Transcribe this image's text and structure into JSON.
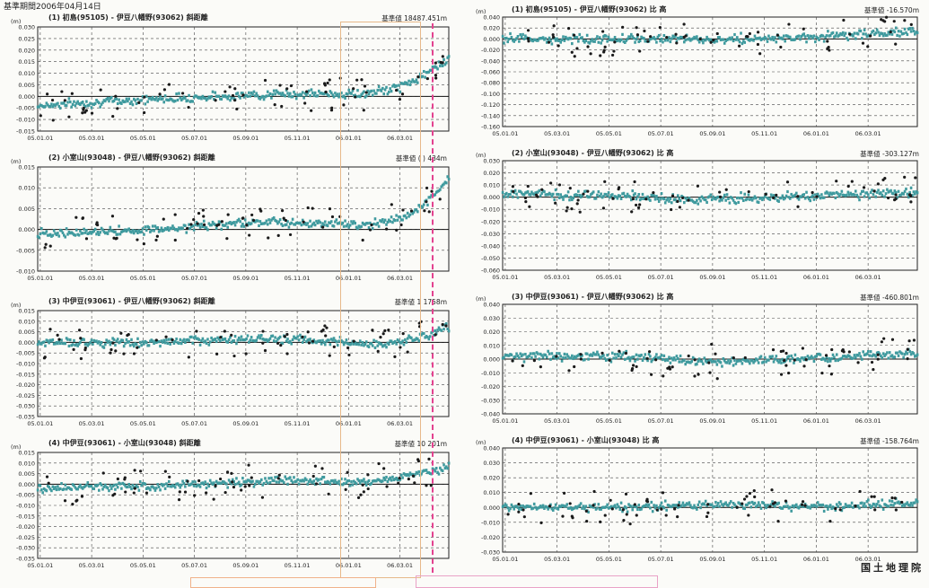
{
  "header": {
    "text": "基準期間2006年04月14日"
  },
  "footer": {
    "org": "国土地理院"
  },
  "colors": {
    "trend": "#3f9a9e",
    "dots": "#1a1a1a",
    "grid": "#333333",
    "highlight_orange": "#e7b98a",
    "highlight_pink": "#e3428f"
  },
  "panels": [
    {
      "title": "(1) 初島(95105) - 伊豆八幡野(93062) 斜距離",
      "base": "基準値 18487.451m"
    },
    {
      "title": "(2) 小室山(93048) - 伊豆八幡野(93062) 斜距離",
      "base": "基準値 ( ) 434m"
    },
    {
      "title": "(3) 中伊豆(93061) - 伊豆八幡野(93062) 斜距離",
      "base": "基準値 1 1758m"
    },
    {
      "title": "(4) 中伊豆(93061) - 小室山(93048) 斜距離",
      "base": "基準値 10 201m"
    },
    {
      "title": "(1) 初島(95105) - 伊豆八幡野(93062) 比 高",
      "base": "基準値 -16.570m"
    },
    {
      "title": "(2) 小室山(93048) - 伊豆八幡野(93062) 比 高",
      "base": "基準値 -303.127m"
    },
    {
      "title": "(3) 中伊豆(93061) - 伊豆八幡野(93062) 比 高",
      "base": "基準値 -460.801m"
    },
    {
      "title": "(4) 中伊豆(93061) - 小室山(93048) 比 高",
      "base": "基準値 -158.764m"
    }
  ],
  "chart_data": [
    {
      "type": "scatter",
      "ylabel": "(m)",
      "ylim": [
        -0.015,
        0.03
      ],
      "yticks": [
        "0.030",
        "0.025",
        "0.020",
        "0.015",
        "0.010",
        "0.005",
        "0.000",
        "-0.005",
        "-0.010",
        "-0.015"
      ],
      "xticks": [
        "05.01.01",
        "05.03.01",
        "05.05.01",
        "05.07.01",
        "05.09.01",
        "05.11.01",
        "06.01.01",
        "06.03.01"
      ],
      "trend": [
        [
          0,
          -0.004
        ],
        [
          0.3,
          -0.001
        ],
        [
          0.6,
          0.001
        ],
        [
          0.8,
          0.001
        ],
        [
          0.88,
          0.004
        ],
        [
          0.94,
          0.009
        ],
        [
          1,
          0.017
        ]
      ]
    },
    {
      "type": "scatter",
      "ylabel": "(m)",
      "ylim": [
        -0.01,
        0.015
      ],
      "yticks": [
        "0.015",
        "0.010",
        "0.005",
        "0.000",
        "-0.005",
        "-0.010"
      ],
      "xticks": [
        "05.01.01",
        "05.03.01",
        "05.05.01",
        "05.07.01",
        "05.09.01",
        "05.11.01",
        "06.01.01",
        "06.03.01"
      ],
      "trend": [
        [
          0,
          -0.001
        ],
        [
          0.3,
          0.0
        ],
        [
          0.55,
          0.002
        ],
        [
          0.8,
          0.001
        ],
        [
          0.9,
          0.003
        ],
        [
          0.95,
          0.007
        ],
        [
          1,
          0.012
        ]
      ]
    },
    {
      "type": "scatter",
      "ylabel": "(m)",
      "ylim": [
        -0.035,
        0.015
      ],
      "yticks": [
        "0.015",
        "0.010",
        "0.005",
        "0.000",
        "-0.005",
        "-0.010",
        "-0.015",
        "-0.020",
        "-0.025",
        "-0.030",
        "-0.035"
      ],
      "xticks": [
        "05.01.01",
        "05.03.01",
        "05.05.01",
        "05.07.01",
        "05.09.01",
        "05.11.01",
        "06.01.01",
        "06.03.01"
      ],
      "trend": [
        [
          0,
          0.0
        ],
        [
          0.3,
          0.0
        ],
        [
          0.55,
          0.002
        ],
        [
          0.75,
          0.0
        ],
        [
          0.85,
          -0.001
        ],
        [
          0.95,
          0.003
        ],
        [
          1,
          0.008
        ]
      ]
    },
    {
      "type": "scatter",
      "ylabel": "(m)",
      "ylim": [
        -0.035,
        0.015
      ],
      "yticks": [
        "0.015",
        "0.010",
        "0.005",
        "0.000",
        "-0.005",
        "-0.010",
        "-0.015",
        "-0.020",
        "-0.025",
        "-0.030",
        "-0.035"
      ],
      "xticks": [
        "05.01.01",
        "05.03.01",
        "05.05.01",
        "05.07.01",
        "05.09.01",
        "05.11.01",
        "06.01.01",
        "06.03.01"
      ],
      "trend": [
        [
          0,
          -0.002
        ],
        [
          0.4,
          0.0
        ],
        [
          0.6,
          0.002
        ],
        [
          0.8,
          0.001
        ],
        [
          0.9,
          0.004
        ],
        [
          1,
          0.008
        ]
      ]
    },
    {
      "type": "scatter",
      "ylabel": "(m)",
      "ylim": [
        -0.16,
        0.04
      ],
      "yticks": [
        "0.040",
        "0.020",
        "0.000",
        "-0.020",
        "-0.040",
        "-0.060",
        "-0.080",
        "-0.100",
        "-0.120",
        "-0.140",
        "-0.160"
      ],
      "xticks": [
        "05.01.01",
        "05.03.01",
        "05.05.01",
        "05.07.01",
        "05.09.01",
        "05.11.01",
        "06.01.01",
        "06.03.01"
      ],
      "trend": [
        [
          0,
          0.0
        ],
        [
          0.3,
          0.0
        ],
        [
          0.6,
          0.0
        ],
        [
          0.8,
          0.005
        ],
        [
          1,
          0.015
        ]
      ]
    },
    {
      "type": "scatter",
      "ylabel": "(m)",
      "ylim": [
        -0.06,
        0.03
      ],
      "yticks": [
        "0.030",
        "0.020",
        "0.010",
        "0.000",
        "-0.010",
        "-0.020",
        "-0.030",
        "-0.040",
        "-0.050",
        "-0.060"
      ],
      "xticks": [
        "05.01.01",
        "05.03.01",
        "05.05.01",
        "05.07.01",
        "05.09.01",
        "05.11.01",
        "06.01.01",
        "06.03.01"
      ],
      "trend": [
        [
          0,
          0.003
        ],
        [
          0.3,
          0.001
        ],
        [
          0.45,
          -0.002
        ],
        [
          0.7,
          0.0
        ],
        [
          1,
          0.004
        ]
      ]
    },
    {
      "type": "scatter",
      "ylabel": "(m)",
      "ylim": [
        -0.04,
        0.04
      ],
      "yticks": [
        "0.040",
        "0.030",
        "0.020",
        "0.010",
        "0.000",
        "-0.010",
        "-0.020",
        "-0.030",
        "-0.040"
      ],
      "xticks": [
        "05.01.01",
        "05.03.01",
        "05.05.01",
        "05.07.01",
        "05.09.01",
        "05.11.01",
        "06.01.01",
        "06.03.01"
      ],
      "trend": [
        [
          0,
          0.002
        ],
        [
          0.3,
          0.002
        ],
        [
          0.5,
          -0.002
        ],
        [
          0.7,
          0.0
        ],
        [
          1,
          0.004
        ]
      ]
    },
    {
      "type": "scatter",
      "ylabel": "(m)",
      "ylim": [
        -0.03,
        0.04
      ],
      "yticks": [
        "0.040",
        "0.030",
        "0.020",
        "0.010",
        "0.000",
        "-0.010",
        "-0.020",
        "-0.030"
      ],
      "xticks": [
        "05.01.01",
        "05.03.01",
        "05.05.01",
        "05.07.01",
        "05.09.01",
        "05.11.01",
        "06.01.01",
        "06.03.01"
      ],
      "trend": [
        [
          0,
          0.0
        ],
        [
          0.3,
          0.0
        ],
        [
          0.5,
          0.002
        ],
        [
          0.8,
          0.001
        ],
        [
          1,
          0.003
        ]
      ]
    }
  ]
}
